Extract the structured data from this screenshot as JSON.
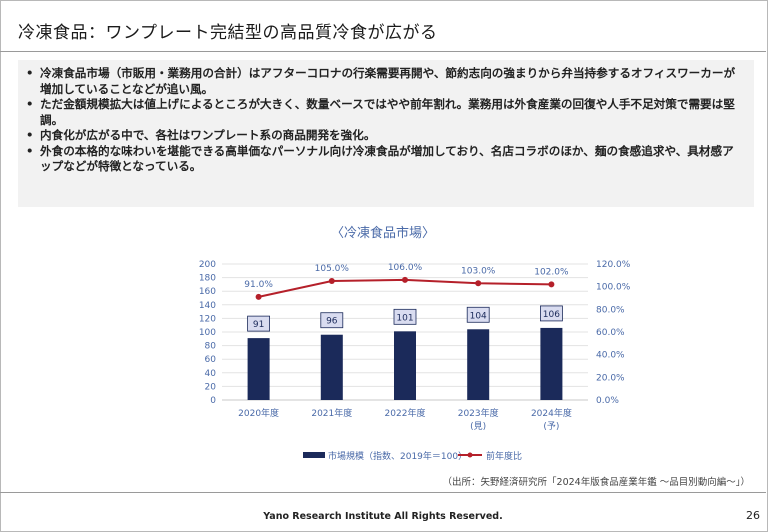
{
  "title": "冷凍食品：ワンプレート完結型の高品質冷食が広がる",
  "summary": {
    "bullet_char": "•",
    "items": [
      "冷凍食品市場（市販用・業務用の合計）はアフターコロナの行楽需要再開や、節約志向の強まりから弁当持参するオフィスワーカーが増加していることなどが追い風。",
      "ただ金額規模拡大は値上げによるところが大きく、数量ベースではやや前年割れ。業務用は外食産業の回復や人手不足対策で需要は堅調。",
      "内食化が広がる中で、各社はワンプレート系の商品開発を強化。",
      "外食の本格的な味わいを堪能できる高単価なパーソナル向け冷凍食品が増加しており、名店コラボのほか、麺の食感追求や、具材感アップなどが特徴となっている。"
    ]
  },
  "chart_title": "〈冷凍食品市場〉",
  "chart_data": {
    "type": "bar",
    "title": "〈冷凍食品市場〉",
    "categories": [
      "2020年度",
      "2021年度",
      "2022年度",
      "2023年度",
      "2024年度"
    ],
    "category_sublabels": [
      "",
      "",
      "",
      "(見)",
      "(予)"
    ],
    "series": [
      {
        "name": "市場規模（指数、2019年＝100）",
        "type": "bar",
        "axis": "left",
        "values": [
          91,
          96,
          101,
          104,
          106
        ],
        "labels": [
          "91",
          "96",
          "101",
          "104",
          "106"
        ],
        "color": "#1b2a5a"
      },
      {
        "name": "前年度比",
        "type": "line",
        "axis": "right",
        "values": [
          91.0,
          105.0,
          106.0,
          103.0,
          102.0
        ],
        "labels": [
          "91.0%",
          "105.0%",
          "106.0%",
          "103.0%",
          "102.0%"
        ],
        "color": "#b5202a"
      }
    ],
    "y_left": {
      "min": 0,
      "max": 200,
      "ticks": [
        "0",
        "20",
        "40",
        "60",
        "80",
        "100",
        "120",
        "140",
        "160",
        "180",
        "200"
      ]
    },
    "y_right": {
      "min": 0,
      "max": 120,
      "ticks": [
        "0.0%",
        "20.0%",
        "40.0%",
        "60.0%",
        "80.0%",
        "100.0%",
        "120.0%"
      ]
    },
    "grid": true,
    "legend_position": "bottom"
  },
  "source": "（出所：矢野経済研究所「2024年版食品産業年鑑 ～品目別動向編～」）",
  "footer": "Yano Research Institute All Rights Reserved.",
  "page_number": "26",
  "colors": {
    "bar": "#1b2a5a",
    "line": "#b5202a",
    "axis_text": "#4a6aa8",
    "summary_bg": "#f2f2f2"
  }
}
